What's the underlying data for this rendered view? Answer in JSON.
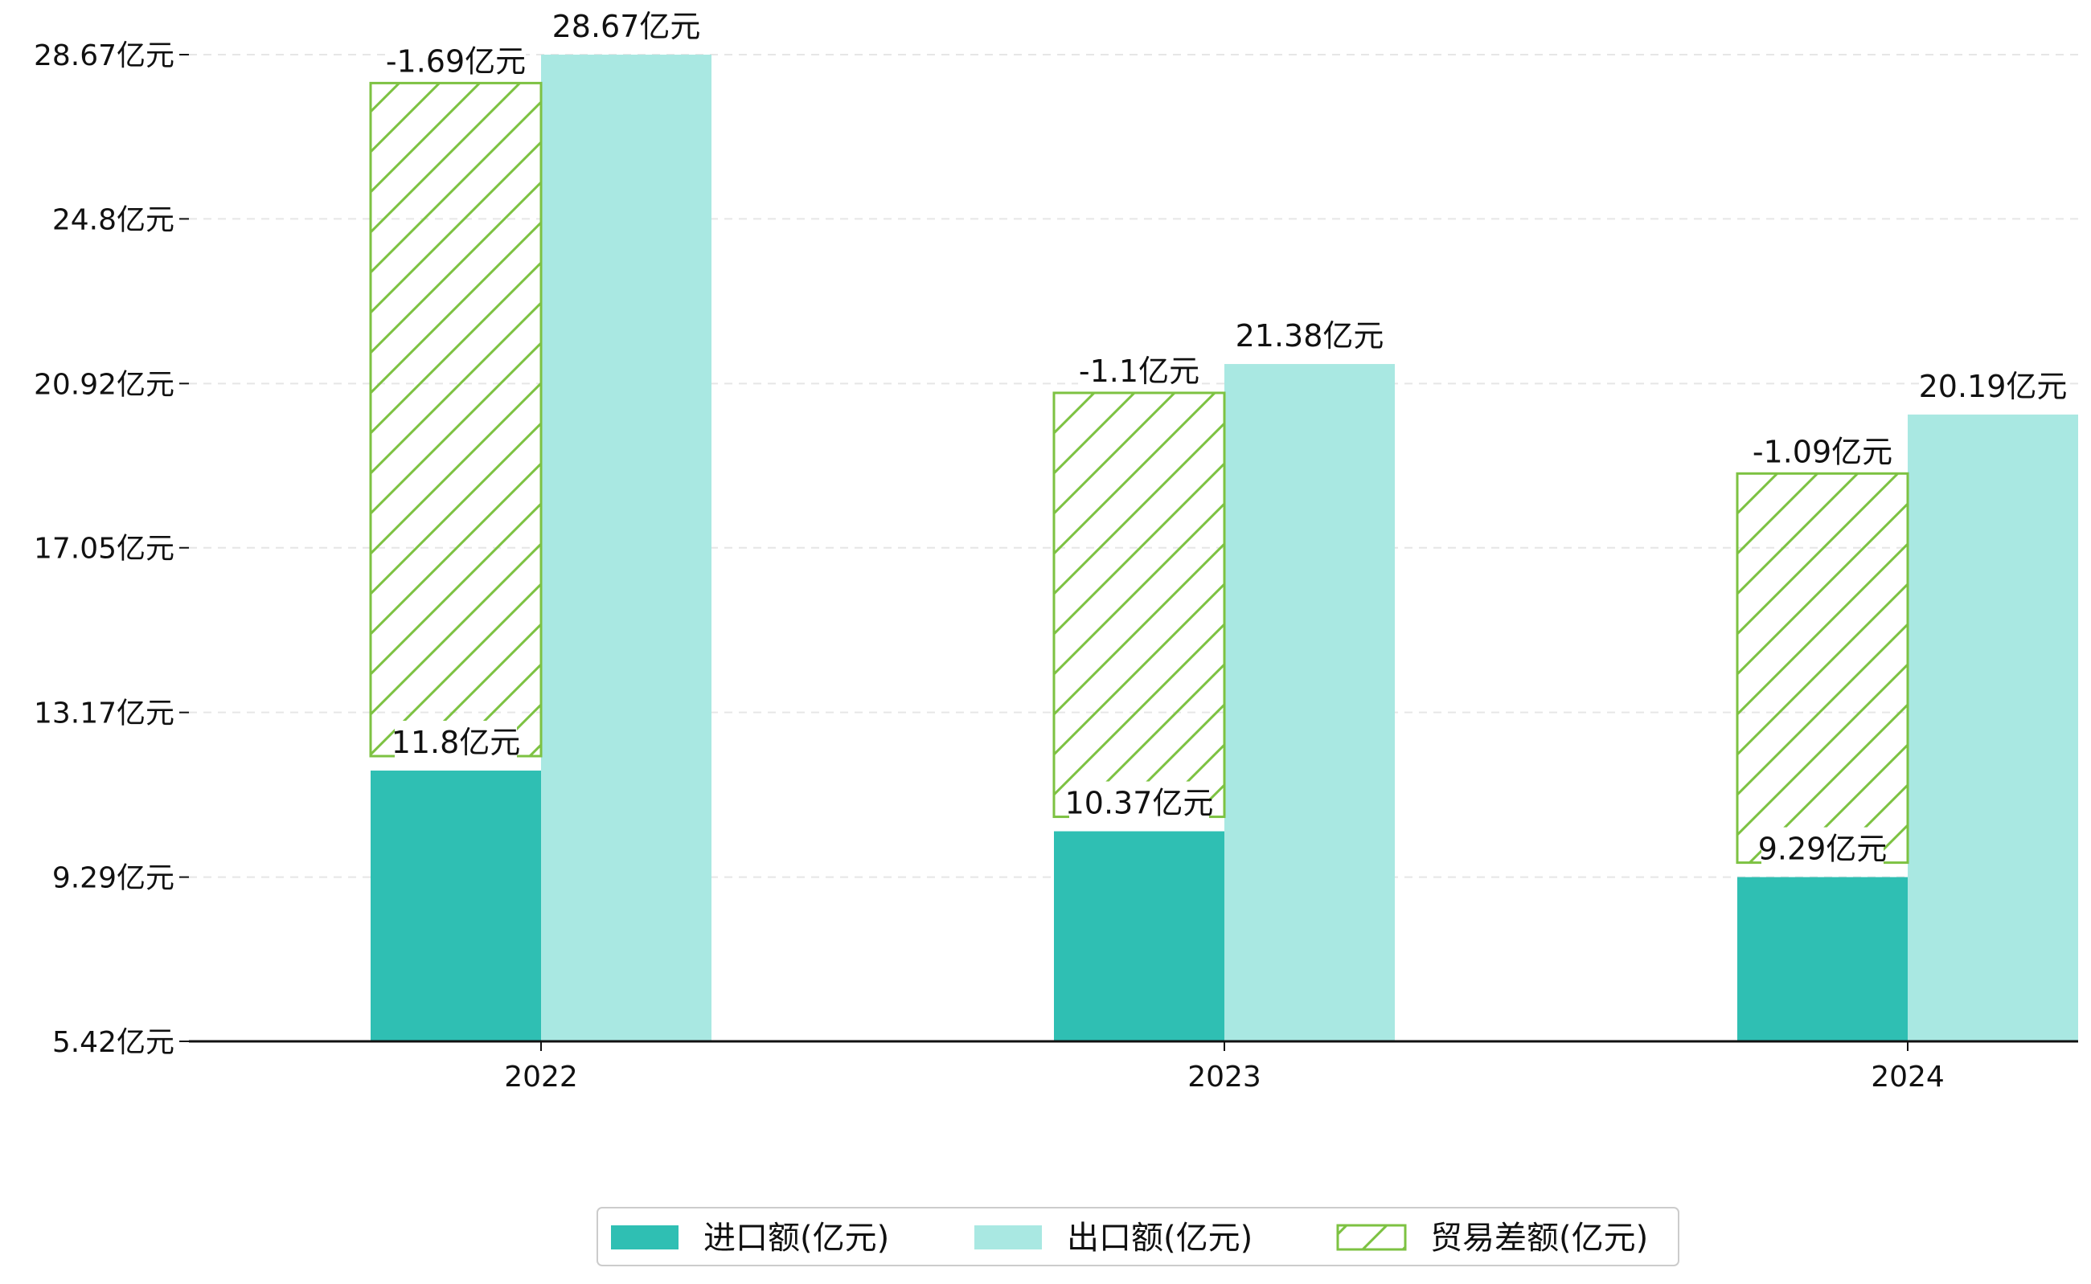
{
  "chart_data": {
    "type": "bar",
    "categories": [
      "2022",
      "2023",
      "2024"
    ],
    "series": [
      {
        "name": "进口额(亿元)",
        "values": [
          11.8,
          10.37,
          9.29
        ],
        "color": "#2fbfb3"
      },
      {
        "name": "出口额(亿元)",
        "values": [
          28.67,
          21.38,
          20.19
        ],
        "color": "#a9e8e2"
      },
      {
        "name": "贸易差额(亿元)",
        "values": [
          -1.69,
          -1.1,
          -1.09
        ],
        "color": "#7dc242",
        "style": "hatched"
      }
    ],
    "trade_bar_tops": [
      28.0,
      20.7,
      18.8
    ],
    "data_labels": {
      "import": [
        "11.8亿元",
        "10.37亿元",
        "9.29亿元"
      ],
      "export": [
        "28.67亿元",
        "21.38亿元",
        "20.19亿元"
      ],
      "trade": [
        "-1.69亿元",
        "-1.1亿元",
        "-1.09亿元"
      ]
    },
    "y_ticks": [
      5.42,
      9.29,
      13.17,
      17.05,
      20.92,
      24.8,
      28.67
    ],
    "y_tick_labels": [
      "5.42亿元",
      "9.29亿元",
      "13.17亿元",
      "17.05亿元",
      "20.92亿元",
      "24.8亿元",
      "28.67亿元"
    ],
    "ylim": [
      5.42,
      28.67
    ],
    "grid": true,
    "legend_position": "bottom-center"
  }
}
